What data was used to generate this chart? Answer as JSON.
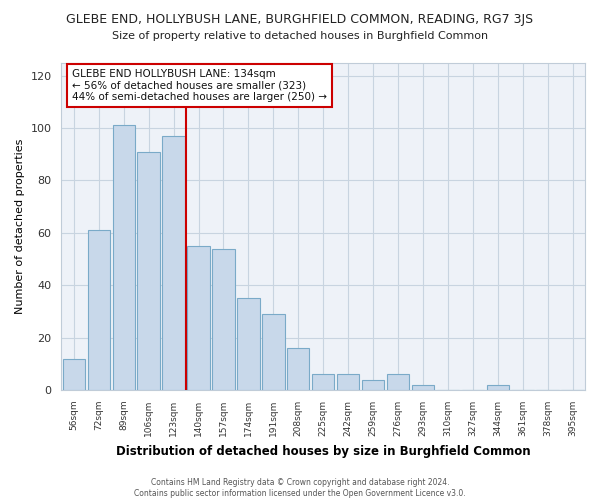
{
  "title": "GLEBE END, HOLLYBUSH LANE, BURGHFIELD COMMON, READING, RG7 3JS",
  "subtitle": "Size of property relative to detached houses in Burghfield Common",
  "xlabel": "Distribution of detached houses by size in Burghfield Common",
  "ylabel": "Number of detached properties",
  "bar_labels": [
    "56sqm",
    "72sqm",
    "89sqm",
    "106sqm",
    "123sqm",
    "140sqm",
    "157sqm",
    "174sqm",
    "191sqm",
    "208sqm",
    "225sqm",
    "242sqm",
    "259sqm",
    "276sqm",
    "293sqm",
    "310sqm",
    "327sqm",
    "344sqm",
    "361sqm",
    "378sqm",
    "395sqm"
  ],
  "bar_values": [
    12,
    61,
    101,
    91,
    97,
    55,
    54,
    35,
    29,
    16,
    6,
    6,
    4,
    6,
    2,
    0,
    0,
    2,
    0,
    0,
    0
  ],
  "bar_color": "#c8d8ea",
  "bar_edge_color": "#7aaac8",
  "vline_color": "#cc0000",
  "annotation_title": "GLEBE END HOLLYBUSH LANE: 134sqm",
  "annotation_line1": "← 56% of detached houses are smaller (323)",
  "annotation_line2": "44% of semi-detached houses are larger (250) →",
  "annotation_box_color": "#ffffff",
  "annotation_box_edge": "#cc0000",
  "ylim": [
    0,
    125
  ],
  "yticks": [
    0,
    20,
    40,
    60,
    80,
    100,
    120
  ],
  "background_color": "#ffffff",
  "plot_bg_color": "#eef2f8",
  "grid_color": "#c8d4e0",
  "footer1": "Contains HM Land Registry data © Crown copyright and database right 2024.",
  "footer2": "Contains public sector information licensed under the Open Government Licence v3.0."
}
